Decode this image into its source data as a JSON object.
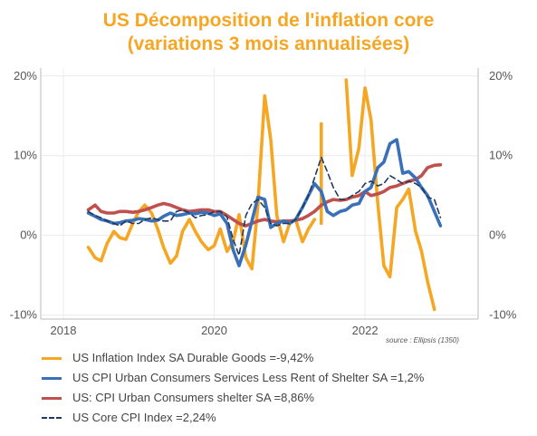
{
  "chart_data": {
    "type": "line",
    "title": "US Décomposition de l'inflation core",
    "subtitle": "(variations 3 mois annualisées)",
    "source": "source : Ellipsis (1350)",
    "xlim": [
      2017.7,
      2023.5
    ],
    "ylim": [
      -10.5,
      21
    ],
    "x_ticks": [
      {
        "value": 2018,
        "label": "2018"
      },
      {
        "value": 2020,
        "label": "2020"
      },
      {
        "value": 2022,
        "label": "2022"
      }
    ],
    "y_ticks": [
      {
        "value": 20,
        "label": "20%"
      },
      {
        "value": 10,
        "label": "10%"
      },
      {
        "value": 0,
        "label": "0%"
      },
      {
        "value": -10,
        "label": "-10%"
      }
    ],
    "grid": true,
    "legend_position": "bottom",
    "series": [
      {
        "name": "US Inflation Index SA Durable Goods =-9,42%",
        "color": "#f5a623",
        "style": "solid",
        "x": [
          2018.33,
          2018.42,
          2018.5,
          2018.58,
          2018.67,
          2018.75,
          2018.83,
          2018.92,
          2019.0,
          2019.08,
          2019.17,
          2019.25,
          2019.33,
          2019.42,
          2019.5,
          2019.58,
          2019.67,
          2019.75,
          2019.83,
          2019.92,
          2020.0,
          2020.08,
          2020.17,
          2020.25,
          2020.33,
          2020.42,
          2020.5,
          2020.58,
          2020.67,
          2020.75,
          2020.83,
          2020.92,
          2021.0,
          2021.08,
          2021.17,
          2021.25,
          2021.33,
          2021.42,
          2021.5,
          2021.58,
          2021.67,
          2021.75,
          2021.83,
          2021.92,
          2022.0,
          2022.08,
          2022.17,
          2022.25,
          2022.33,
          2022.42,
          2022.5,
          2022.58,
          2022.67,
          2022.75,
          2022.83,
          2022.92,
          2023.0
        ],
        "y": [
          -1.5,
          -2.8,
          -3.2,
          -1.0,
          0.5,
          -0.3,
          -0.5,
          1.5,
          3.0,
          3.8,
          2.8,
          0.8,
          -1.5,
          -3.5,
          -2.6,
          0.5,
          2.0,
          0.5,
          -0.8,
          -1.8,
          -1.3,
          0.8,
          -2.0,
          -0.8,
          2.6,
          -2.8,
          -4.2,
          3.8,
          17.5,
          12.0,
          2.5,
          -0.8,
          1.5,
          2.0,
          -0.8,
          0.8,
          2.0,
          null,
          null,
          null,
          null,
          19.5,
          7.5,
          11.0,
          18.5,
          14.5,
          4.0,
          -3.8,
          -5.2,
          3.5,
          4.5,
          5.8,
          0.5,
          -2.0,
          -5.8,
          -9.3,
          null
        ],
        "y_extra_segment": {
          "x": [
            2021.42
          ],
          "y": [
            14.0
          ]
        }
      },
      {
        "name": "US CPI Urban Consumers Services Less Rent of Shelter SA =1,2%",
        "color": "#3a70b8",
        "style": "solid",
        "x": [
          2018.33,
          2018.42,
          2018.5,
          2018.58,
          2018.67,
          2018.75,
          2018.83,
          2018.92,
          2019.0,
          2019.08,
          2019.17,
          2019.25,
          2019.33,
          2019.42,
          2019.5,
          2019.58,
          2019.67,
          2019.75,
          2019.83,
          2019.92,
          2020.0,
          2020.08,
          2020.17,
          2020.25,
          2020.33,
          2020.42,
          2020.5,
          2020.58,
          2020.67,
          2020.75,
          2020.83,
          2020.92,
          2021.0,
          2021.08,
          2021.17,
          2021.25,
          2021.33,
          2021.42,
          2021.5,
          2021.58,
          2021.67,
          2021.75,
          2021.83,
          2021.92,
          2022.0,
          2022.08,
          2022.17,
          2022.25,
          2022.33,
          2022.42,
          2022.5,
          2022.58,
          2022.67,
          2022.75,
          2022.83,
          2022.92,
          2023.0
        ],
        "y": [
          2.8,
          2.4,
          2.0,
          1.8,
          1.5,
          1.6,
          1.8,
          1.9,
          2.1,
          2.0,
          1.8,
          1.9,
          2.4,
          2.8,
          2.5,
          2.6,
          2.8,
          2.7,
          2.9,
          2.8,
          2.5,
          2.7,
          1.5,
          -1.8,
          -3.8,
          -1.2,
          1.8,
          4.8,
          4.5,
          1.0,
          1.5,
          1.8,
          1.5,
          2.0,
          3.5,
          5.0,
          6.5,
          5.5,
          3.0,
          2.5,
          3.0,
          3.2,
          3.8,
          4.0,
          5.5,
          6.0,
          8.5,
          9.2,
          11.5,
          12.0,
          7.8,
          8.0,
          7.2,
          6.0,
          5.0,
          3.0,
          1.2
        ]
      },
      {
        "name": "US: CPI Urban Consumers shelter SA =8,86%",
        "color": "#c0504d",
        "style": "solid",
        "x": [
          2018.33,
          2018.42,
          2018.5,
          2018.58,
          2018.67,
          2018.75,
          2018.83,
          2018.92,
          2019.0,
          2019.08,
          2019.17,
          2019.25,
          2019.33,
          2019.42,
          2019.5,
          2019.58,
          2019.67,
          2019.75,
          2019.83,
          2019.92,
          2020.0,
          2020.08,
          2020.17,
          2020.25,
          2020.33,
          2020.42,
          2020.5,
          2020.58,
          2020.67,
          2020.75,
          2020.83,
          2020.92,
          2021.0,
          2021.08,
          2021.17,
          2021.25,
          2021.33,
          2021.42,
          2021.5,
          2021.58,
          2021.67,
          2021.75,
          2021.83,
          2021.92,
          2022.0,
          2022.08,
          2022.17,
          2022.25,
          2022.33,
          2022.42,
          2022.5,
          2022.58,
          2022.67,
          2022.75,
          2022.83,
          2022.92,
          2023.0
        ],
        "y": [
          3.2,
          3.8,
          3.0,
          2.8,
          2.8,
          3.0,
          3.0,
          2.9,
          3.0,
          3.2,
          3.5,
          3.8,
          4.0,
          3.8,
          3.5,
          3.2,
          3.0,
          3.1,
          3.2,
          3.2,
          3.0,
          3.0,
          2.5,
          2.0,
          1.5,
          1.2,
          1.5,
          1.8,
          2.0,
          1.8,
          1.7,
          1.8,
          1.8,
          1.9,
          2.1,
          2.5,
          3.0,
          3.8,
          4.2,
          4.5,
          4.4,
          4.5,
          4.8,
          5.0,
          5.5,
          5.0,
          5.2,
          5.5,
          6.0,
          6.2,
          6.5,
          6.8,
          7.0,
          7.5,
          8.5,
          8.8,
          8.86
        ]
      },
      {
        "name": "US Core CPI Index =2,24%",
        "color": "#1f3a5f",
        "style": "dashed",
        "x": [
          2018.33,
          2018.42,
          2018.5,
          2018.58,
          2018.67,
          2018.75,
          2018.83,
          2018.92,
          2019.0,
          2019.08,
          2019.17,
          2019.25,
          2019.33,
          2019.42,
          2019.5,
          2019.58,
          2019.67,
          2019.75,
          2019.83,
          2019.92,
          2020.0,
          2020.08,
          2020.17,
          2020.25,
          2020.33,
          2020.42,
          2020.5,
          2020.58,
          2020.67,
          2020.75,
          2020.83,
          2020.92,
          2021.0,
          2021.08,
          2021.17,
          2021.25,
          2021.33,
          2021.42,
          2021.5,
          2021.58,
          2021.67,
          2021.75,
          2021.83,
          2021.92,
          2022.0,
          2022.08,
          2022.17,
          2022.25,
          2022.33,
          2022.42,
          2022.5,
          2022.58,
          2022.67,
          2022.75,
          2022.83,
          2022.92,
          2023.0
        ],
        "y": [
          3.0,
          2.5,
          2.2,
          1.8,
          1.5,
          1.2,
          1.8,
          1.5,
          1.5,
          2.0,
          2.2,
          2.0,
          1.8,
          1.8,
          3.0,
          3.2,
          2.8,
          2.2,
          2.5,
          2.6,
          3.0,
          3.0,
          2.3,
          -0.5,
          -2.5,
          2.5,
          4.0,
          4.5,
          3.5,
          1.5,
          1.2,
          1.5,
          1.5,
          2.0,
          3.5,
          5.0,
          7.2,
          9.8,
          8.0,
          6.0,
          4.5,
          4.5,
          5.0,
          5.5,
          6.5,
          6.8,
          6.2,
          6.5,
          7.5,
          7.0,
          6.5,
          6.8,
          6.5,
          6.0,
          4.8,
          4.5,
          2.24
        ]
      }
    ]
  },
  "legend": {
    "items": [
      {
        "label": "US Inflation Index SA Durable Goods =-9,42%",
        "color": "#f5a623",
        "style": "solid"
      },
      {
        "label": "US CPI Urban Consumers Services Less Rent of Shelter SA =1,2%",
        "color": "#3a70b8",
        "style": "solid"
      },
      {
        "label": "US: CPI Urban Consumers shelter SA =8,86%",
        "color": "#c0504d",
        "style": "solid"
      },
      {
        "label": "US Core CPI Index =2,24%",
        "color": "#1f3a5f",
        "style": "dashed"
      }
    ]
  }
}
